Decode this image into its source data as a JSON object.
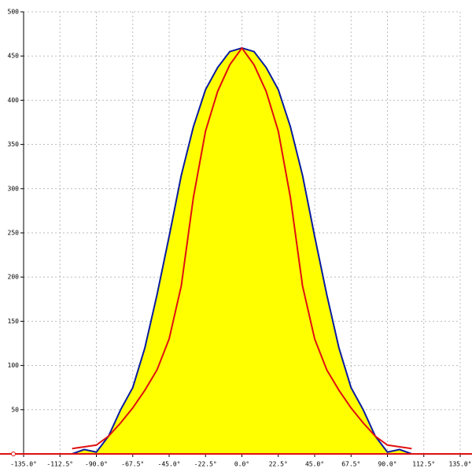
{
  "chart_data": {
    "type": "line",
    "x": [
      -105,
      -97.5,
      -90,
      -82.5,
      -75,
      -67.5,
      -60,
      -52.5,
      -45,
      -37.5,
      -30,
      -22.5,
      -15,
      -7.5,
      0,
      7.5,
      15,
      22.5,
      30,
      37.5,
      45,
      52.5,
      60,
      67.5,
      75,
      82.5,
      90,
      97.5,
      105
    ],
    "series": [
      {
        "color": "#0a1aa0",
        "fill": "#ffff00",
        "values": [
          0,
          5,
          2,
          20,
          50,
          75,
          120,
          180,
          246,
          315,
          370,
          412,
          437,
          455,
          459,
          455,
          437,
          412,
          370,
          315,
          246,
          180,
          120,
          75,
          50,
          20,
          2,
          5,
          0
        ]
      },
      {
        "color": "#e01010",
        "values": [
          6,
          8,
          10,
          20,
          35,
          52,
          72,
          95,
          130,
          190,
          290,
          365,
          410,
          440,
          459,
          440,
          410,
          365,
          290,
          190,
          130,
          95,
          72,
          52,
          35,
          20,
          10,
          8,
          6
        ]
      }
    ],
    "xlim": [
      -135,
      135
    ],
    "xticks": [
      {
        "value": -135,
        "label": "-135.0°"
      },
      {
        "value": -112.5,
        "label": "-112.5°"
      },
      {
        "value": -90,
        "label": "-90.0°"
      },
      {
        "value": -67.5,
        "label": "-67.5°"
      },
      {
        "value": -45,
        "label": "-45.0°"
      },
      {
        "value": -22.5,
        "label": "-22.5°"
      },
      {
        "value": 0,
        "label": "0.0°"
      },
      {
        "value": 22.5,
        "label": "22.5°"
      },
      {
        "value": 45,
        "label": "45.0°"
      },
      {
        "value": 67.5,
        "label": "67.5°"
      },
      {
        "value": 90,
        "label": "90.0°"
      },
      {
        "value": 112.5,
        "label": "112.5°"
      },
      {
        "value": 135,
        "label": "135.0°"
      }
    ],
    "ylim": [
      0,
      500
    ],
    "yticks": [
      50,
      100,
      150,
      200,
      250,
      300,
      350,
      400,
      450,
      500
    ],
    "grid": true
  }
}
